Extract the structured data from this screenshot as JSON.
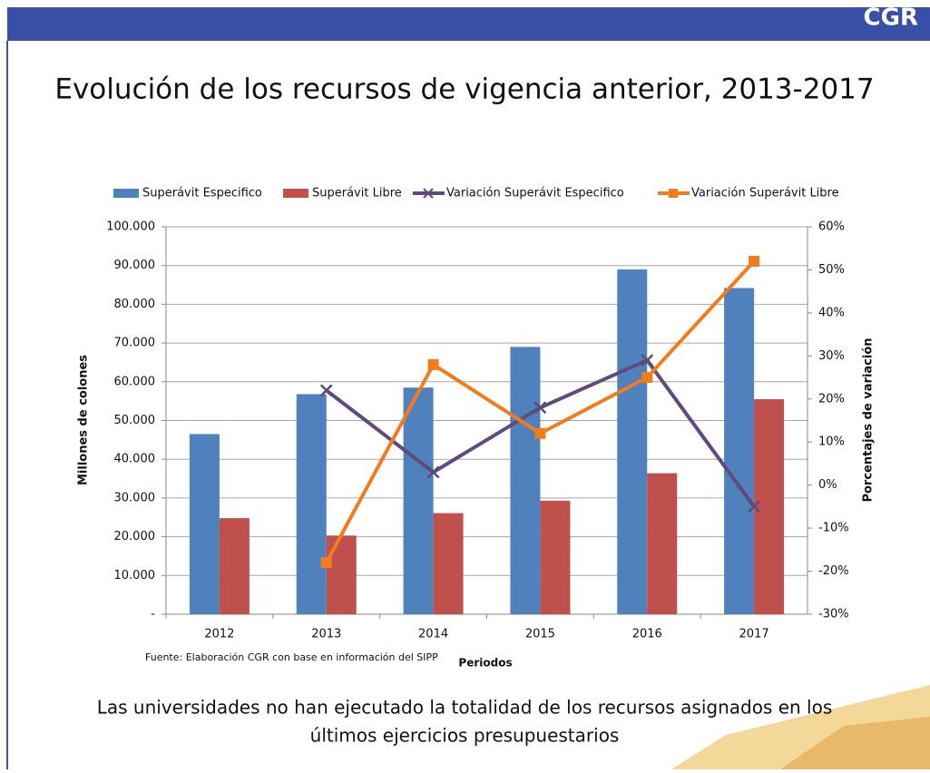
{
  "header": {
    "logo": "CGR"
  },
  "title": "Evolución de los recursos de vigencia anterior, 2013-2017",
  "chart_data": {
    "type": "bar",
    "categories": [
      "2012",
      "2013",
      "2014",
      "2015",
      "2016",
      "2017"
    ],
    "series": [
      {
        "name": "Superávit Especifico",
        "type": "bar",
        "color": "#4f81bd",
        "values": [
          46500,
          56800,
          58500,
          69000,
          89000,
          84200
        ]
      },
      {
        "name": "Superávit Libre",
        "type": "bar",
        "color": "#c0504d",
        "values": [
          24800,
          20300,
          26100,
          29300,
          36400,
          55500
        ]
      },
      {
        "name": "Variación Superávit Especifico",
        "type": "line",
        "marker": "x",
        "axis": "y2",
        "color": "#604a7b",
        "values": [
          null,
          22,
          3,
          18,
          29,
          -5
        ]
      },
      {
        "name": "Variación Superávit Libre",
        "type": "line",
        "marker": "square",
        "axis": "y2",
        "color": "#f07c1c",
        "values": [
          null,
          -18,
          28,
          12,
          25,
          52
        ]
      }
    ],
    "ylim": [
      0,
      100000
    ],
    "yticks": [
      {
        "value": 0,
        "label": "-"
      },
      {
        "value": 10000,
        "label": "10.000"
      },
      {
        "value": 20000,
        "label": "20.000"
      },
      {
        "value": 30000,
        "label": "30.000"
      },
      {
        "value": 40000,
        "label": "40.000"
      },
      {
        "value": 50000,
        "label": "50.000"
      },
      {
        "value": 60000,
        "label": "60.000"
      },
      {
        "value": 70000,
        "label": "70.000"
      },
      {
        "value": 80000,
        "label": "80.000"
      },
      {
        "value": 90000,
        "label": "90.000"
      },
      {
        "value": 100000,
        "label": "100.000"
      }
    ],
    "y2lim": [
      -30,
      60
    ],
    "y2ticks": [
      {
        "value": -30,
        "label": "-30%"
      },
      {
        "value": -20,
        "label": "-20%"
      },
      {
        "value": -10,
        "label": "-10%"
      },
      {
        "value": 0,
        "label": "0%"
      },
      {
        "value": 10,
        "label": "10%"
      },
      {
        "value": 20,
        "label": "20%"
      },
      {
        "value": 30,
        "label": "30%"
      },
      {
        "value": 40,
        "label": "40%"
      },
      {
        "value": 50,
        "label": "50%"
      },
      {
        "value": 60,
        "label": "60%"
      }
    ],
    "ylabel": "Millones de colones",
    "y2label": "Porcentajes de variación",
    "xlabel": "Periodos",
    "grid": true,
    "legend": "top"
  },
  "source": "Fuente: Elaboración CGR con base en información del SIPP",
  "footer": {
    "lines": [
      "Las universidades no han ejecutado la totalidad de los recursos asignados en los",
      "últimos ejercicios presupuestarios"
    ]
  }
}
